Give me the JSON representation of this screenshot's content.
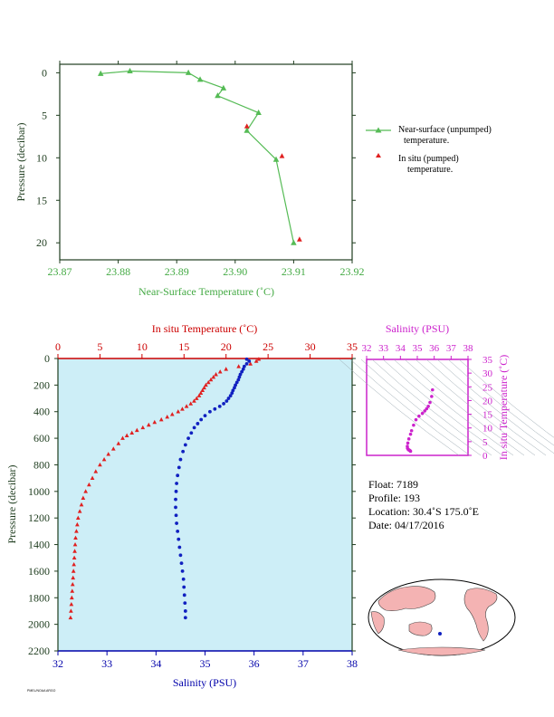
{
  "colors": {
    "green": "#55bb55",
    "green_text": "#44aa44",
    "red": "#e02020",
    "red_text": "#cc0000",
    "blue": "#1020c0",
    "blue_text": "#0000aa",
    "magenta": "#cc22cc",
    "panel_bg": "#cdeef7",
    "axis_dark": "#1f3d1f"
  },
  "top_chart": {
    "ylabel": "Pressure (decibar)",
    "xlabel": "Near-Surface Temperature (˚C)",
    "x_ticks": [
      "23.87",
      "23.88",
      "23.89",
      "23.90",
      "23.91",
      "23.92"
    ],
    "y_ticks": [
      "0",
      "5",
      "10",
      "15",
      "20"
    ]
  },
  "legend": {
    "near_surface_line1": "Near-surface (unpumped)",
    "near_surface_line2": "temperature.",
    "in_situ_line1": "In situ (pumped)",
    "in_situ_line2": "temperature."
  },
  "main_chart": {
    "top_label": "In situ Temperature (˚C)",
    "bottom_label": "Salinity (PSU)",
    "ylabel": "Pressure (decibar)",
    "temp_ticks": [
      "0",
      "5",
      "10",
      "15",
      "20",
      "25",
      "30",
      "35"
    ],
    "sal_ticks": [
      "32",
      "33",
      "34",
      "35",
      "36",
      "37",
      "38"
    ],
    "p_ticks": [
      "0",
      "200",
      "400",
      "600",
      "800",
      "1000",
      "1200",
      "1400",
      "1600",
      "1800",
      "2000",
      "2200"
    ]
  },
  "ts_chart": {
    "top_label": "Salinity (PSU)",
    "right_label": "In situ Temperature (˚C)",
    "sal_ticks": [
      "32",
      "33",
      "34",
      "35",
      "36",
      "37",
      "38"
    ],
    "temp_ticks": [
      "0",
      "5",
      "10",
      "15",
      "20",
      "25",
      "30",
      "35"
    ]
  },
  "info": {
    "float": "Float:  7189",
    "profile": "Profile:  193",
    "location": "Location:  30.4˚S  175.0˚E",
    "date": "Date:  04/17/2016"
  },
  "footnote": "PMEL/NOAA ARGO",
  "chart_data": [
    {
      "type": "line",
      "name": "near-surface profile",
      "xlim": [
        23.87,
        23.92
      ],
      "ylim": [
        22,
        -1
      ],
      "series": [
        {
          "name": "Near-surface (unpumped) temperature.",
          "marker": "triangle",
          "points": [
            [
              23.877,
              0.1
            ],
            [
              23.882,
              -0.2
            ],
            [
              23.892,
              0.0
            ],
            [
              23.894,
              0.8
            ],
            [
              23.898,
              1.8
            ],
            [
              23.897,
              2.7
            ],
            [
              23.904,
              4.7
            ],
            [
              23.902,
              6.8
            ],
            [
              23.907,
              10.2
            ],
            [
              23.91,
              20.0
            ]
          ]
        },
        {
          "name": "In situ (pumped) temperature.",
          "marker": "triangle",
          "points": [
            [
              23.902,
              6.3
            ],
            [
              23.908,
              9.8
            ],
            [
              23.911,
              19.6
            ]
          ]
        }
      ]
    },
    {
      "type": "scatter",
      "name": "temperature and salinity profiles",
      "temp_lim": [
        0,
        35
      ],
      "sal_lim": [
        32,
        38
      ],
      "p_lim": [
        0,
        2200
      ],
      "series": [
        {
          "name": "In situ Temperature (˚C)",
          "marker": "triangle",
          "points": [
            [
              23.9,
              5
            ],
            [
              23.6,
              20
            ],
            [
              22.9,
              40
            ],
            [
              21.5,
              60
            ],
            [
              20.0,
              80
            ],
            [
              19.3,
              100
            ],
            [
              18.8,
              120
            ],
            [
              18.5,
              140
            ],
            [
              18.2,
              160
            ],
            [
              17.9,
              180
            ],
            [
              17.6,
              200
            ],
            [
              17.4,
              220
            ],
            [
              17.2,
              240
            ],
            [
              17.0,
              260
            ],
            [
              16.8,
              280
            ],
            [
              16.5,
              300
            ],
            [
              16.2,
              320
            ],
            [
              15.8,
              340
            ],
            [
              15.3,
              360
            ],
            [
              14.8,
              380
            ],
            [
              14.3,
              400
            ],
            [
              13.6,
              420
            ],
            [
              13.0,
              440
            ],
            [
              12.3,
              460
            ],
            [
              11.5,
              480
            ],
            [
              10.8,
              500
            ],
            [
              10.1,
              520
            ],
            [
              9.4,
              540
            ],
            [
              8.8,
              560
            ],
            [
              8.2,
              580
            ],
            [
              7.7,
              600
            ],
            [
              7.2,
              640
            ],
            [
              6.6,
              680
            ],
            [
              6.0,
              720
            ],
            [
              5.5,
              760
            ],
            [
              5.0,
              800
            ],
            [
              4.5,
              850
            ],
            [
              4.1,
              900
            ],
            [
              3.7,
              950
            ],
            [
              3.3,
              1000
            ],
            [
              3.0,
              1050
            ],
            [
              2.8,
              1100
            ],
            [
              2.6,
              1150
            ],
            [
              2.4,
              1200
            ],
            [
              2.3,
              1250
            ],
            [
              2.2,
              1300
            ],
            [
              2.1,
              1350
            ],
            [
              2.05,
              1400
            ],
            [
              2.0,
              1450
            ],
            [
              1.95,
              1500
            ],
            [
              1.9,
              1550
            ],
            [
              1.85,
              1600
            ],
            [
              1.8,
              1650
            ],
            [
              1.75,
              1700
            ],
            [
              1.7,
              1750
            ],
            [
              1.65,
              1800
            ],
            [
              1.6,
              1850
            ],
            [
              1.55,
              1900
            ],
            [
              1.5,
              1950
            ]
          ]
        },
        {
          "name": "Salinity (PSU)",
          "marker": "circle",
          "points": [
            [
              35.85,
              5
            ],
            [
              35.9,
              20
            ],
            [
              35.85,
              40
            ],
            [
              35.8,
              60
            ],
            [
              35.78,
              80
            ],
            [
              35.75,
              100
            ],
            [
              35.72,
              120
            ],
            [
              35.7,
              140
            ],
            [
              35.68,
              160
            ],
            [
              35.65,
              180
            ],
            [
              35.62,
              200
            ],
            [
              35.6,
              220
            ],
            [
              35.57,
              240
            ],
            [
              35.55,
              260
            ],
            [
              35.52,
              280
            ],
            [
              35.48,
              300
            ],
            [
              35.44,
              320
            ],
            [
              35.38,
              340
            ],
            [
              35.3,
              360
            ],
            [
              35.2,
              380
            ],
            [
              35.1,
              400
            ],
            [
              35.0,
              430
            ],
            [
              34.92,
              460
            ],
            [
              34.85,
              490
            ],
            [
              34.78,
              520
            ],
            [
              34.72,
              560
            ],
            [
              34.66,
              600
            ],
            [
              34.6,
              650
            ],
            [
              34.55,
              700
            ],
            [
              34.5,
              760
            ],
            [
              34.47,
              820
            ],
            [
              34.44,
              880
            ],
            [
              34.42,
              940
            ],
            [
              34.41,
              1000
            ],
            [
              34.4,
              1060
            ],
            [
              34.4,
              1120
            ],
            [
              34.41,
              1180
            ],
            [
              34.42,
              1240
            ],
            [
              34.44,
              1300
            ],
            [
              34.46,
              1360
            ],
            [
              34.48,
              1420
            ],
            [
              34.5,
              1480
            ],
            [
              34.52,
              1540
            ],
            [
              34.54,
              1600
            ],
            [
              34.56,
              1660
            ],
            [
              34.57,
              1720
            ],
            [
              34.58,
              1780
            ],
            [
              34.59,
              1840
            ],
            [
              34.6,
              1900
            ],
            [
              34.6,
              1950
            ]
          ]
        }
      ]
    },
    {
      "type": "scatter",
      "name": "T-S diagram",
      "xlim": [
        32,
        38
      ],
      "ylim": [
        0,
        35
      ],
      "series": [
        {
          "name": "T-S points",
          "points": [
            [
              35.9,
              23.9
            ],
            [
              35.85,
              21.5
            ],
            [
              35.75,
              19.3
            ],
            [
              35.65,
              17.9
            ],
            [
              35.55,
              17.0
            ],
            [
              35.44,
              16.2
            ],
            [
              35.3,
              15.3
            ],
            [
              35.1,
              14.3
            ],
            [
              34.92,
              13.0
            ],
            [
              34.78,
              11.0
            ],
            [
              34.66,
              9.0
            ],
            [
              34.6,
              7.7
            ],
            [
              34.5,
              6.0
            ],
            [
              34.44,
              4.5
            ],
            [
              34.41,
              3.3
            ],
            [
              34.42,
              2.6
            ],
            [
              34.46,
              2.2
            ],
            [
              34.5,
              2.0
            ],
            [
              34.54,
              1.85
            ],
            [
              34.57,
              1.7
            ],
            [
              34.6,
              1.5
            ]
          ]
        }
      ]
    }
  ]
}
